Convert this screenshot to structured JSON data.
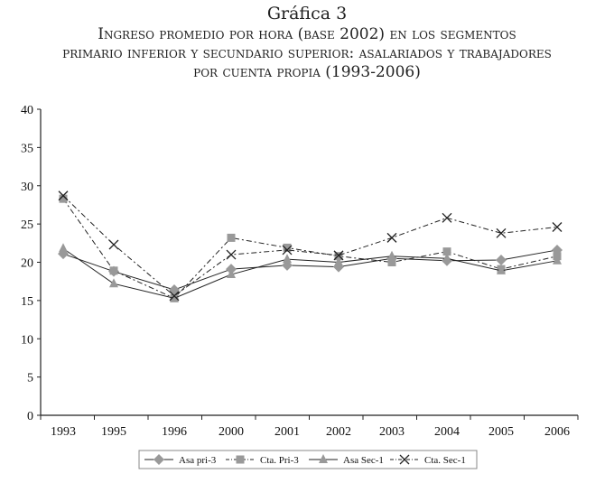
{
  "chart_data": {
    "type": "line",
    "title": "Gráfica 3",
    "subtitle_lines": [
      "Ingreso promedio por hora (base 2002) en los segmentos",
      "primario inferior y secundario superior: asalariados y trabajadores",
      "por cuenta propia (1993-2006)"
    ],
    "xlabel": "",
    "ylabel": "",
    "categories": [
      "1993",
      "1995",
      "1996",
      "2000",
      "2001",
      "2002",
      "2003",
      "2004",
      "2005",
      "2006"
    ],
    "ylim": [
      0,
      40
    ],
    "yticks": [
      "0",
      "5",
      "10",
      "15",
      "20",
      "25",
      "30",
      "35",
      "40"
    ],
    "grid": false,
    "legend_position": "bottom",
    "series": [
      {
        "name": "Asa pri-3",
        "marker": "diamond",
        "line": "solid",
        "color": "#999999",
        "values": [
          21.1,
          18.8,
          16.4,
          19.1,
          19.6,
          19.4,
          20.5,
          20.2,
          20.3,
          21.6
        ]
      },
      {
        "name": "Cta. Pri-3",
        "marker": "square",
        "line": "dash-dot",
        "color": "#999999",
        "values": [
          28.3,
          18.9,
          15.3,
          23.2,
          21.9,
          20.8,
          20.0,
          21.4,
          19.1,
          20.8
        ]
      },
      {
        "name": "Asa Sec-1",
        "marker": "triangle",
        "line": "solid",
        "color": "#999999",
        "values": [
          21.8,
          17.2,
          15.3,
          18.4,
          20.4,
          20.0,
          20.8,
          20.5,
          18.9,
          20.2
        ]
      },
      {
        "name": "Cta.  Sec-1",
        "marker": "x",
        "line": "dash-dot",
        "color": "#222222",
        "values": [
          28.7,
          22.3,
          15.6,
          21.0,
          21.6,
          20.9,
          23.2,
          25.8,
          23.8,
          24.6
        ]
      }
    ]
  }
}
